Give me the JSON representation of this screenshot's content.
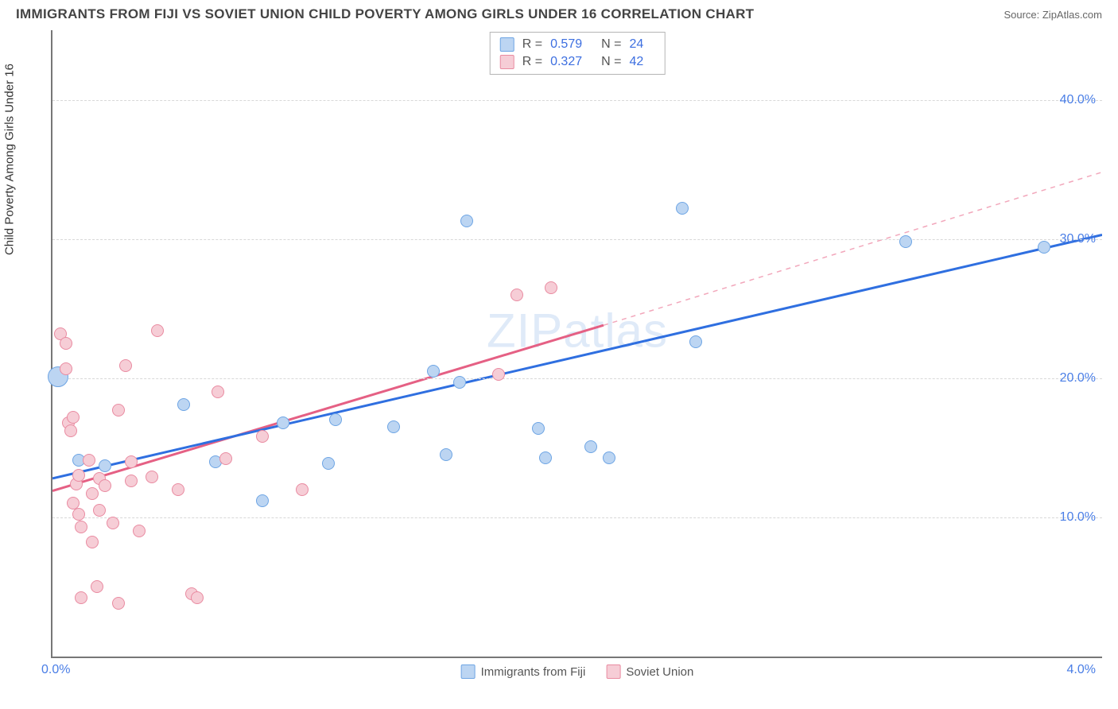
{
  "header": {
    "title": "IMMIGRANTS FROM FIJI VS SOVIET UNION CHILD POVERTY AMONG GIRLS UNDER 16 CORRELATION CHART",
    "source_prefix": "Source: ",
    "source_name": "ZipAtlas.com"
  },
  "y_axis_label": "Child Poverty Among Girls Under 16",
  "watermark": "ZIPatlas",
  "chart": {
    "type": "scatter",
    "xlim": [
      0.0,
      4.0
    ],
    "ylim": [
      0.0,
      45.0
    ],
    "y_gridlines": [
      10.0,
      20.0,
      30.0,
      40.0
    ],
    "y_tick_labels": [
      "10.0%",
      "20.0%",
      "30.0%",
      "40.0%"
    ],
    "x_tick_labels": {
      "left": "0.0%",
      "right": "4.0%"
    },
    "grid_color": "#d8d8d8",
    "axis_color": "#777777",
    "background_color": "#ffffff",
    "series": [
      {
        "name": "Immigrants from Fiji",
        "key": "fiji",
        "marker_fill": "#bcd5f2",
        "marker_stroke": "#6ea5e4",
        "marker_radius": 8,
        "line_color": "#2f6fe0",
        "line_width": 3,
        "line_dash": "none",
        "trend": {
          "x1": 0.0,
          "y1": 12.8,
          "x2": 4.0,
          "y2": 30.3
        },
        "R": "0.579",
        "N": "24",
        "points": [
          {
            "x": 0.02,
            "y": 20.1,
            "r": 13
          },
          {
            "x": 0.1,
            "y": 14.1
          },
          {
            "x": 0.2,
            "y": 13.7
          },
          {
            "x": 0.5,
            "y": 18.1
          },
          {
            "x": 0.62,
            "y": 14.0
          },
          {
            "x": 0.8,
            "y": 11.2
          },
          {
            "x": 0.88,
            "y": 16.8
          },
          {
            "x": 1.05,
            "y": 13.9
          },
          {
            "x": 1.08,
            "y": 17.0
          },
          {
            "x": 1.3,
            "y": 16.5
          },
          {
            "x": 1.45,
            "y": 20.5
          },
          {
            "x": 1.5,
            "y": 14.5
          },
          {
            "x": 1.55,
            "y": 19.7
          },
          {
            "x": 1.58,
            "y": 31.3
          },
          {
            "x": 1.85,
            "y": 16.4
          },
          {
            "x": 1.88,
            "y": 14.3
          },
          {
            "x": 2.05,
            "y": 15.1
          },
          {
            "x": 2.12,
            "y": 14.3
          },
          {
            "x": 2.4,
            "y": 32.2
          },
          {
            "x": 2.45,
            "y": 22.6
          },
          {
            "x": 3.25,
            "y": 29.8
          },
          {
            "x": 3.78,
            "y": 29.4
          }
        ]
      },
      {
        "name": "Soviet Union",
        "key": "soviet",
        "marker_fill": "#f6cdd6",
        "marker_stroke": "#e98ba1",
        "marker_radius": 8,
        "line_color": "#e56084",
        "line_width": 3,
        "line_dash": "none",
        "dashed_ext_color": "#f2a7bb",
        "trend": {
          "x1": 0.0,
          "y1": 11.9,
          "x2": 2.1,
          "y2": 23.8
        },
        "trend_ext": {
          "x1": 2.1,
          "y1": 23.8,
          "x2": 4.0,
          "y2": 34.8
        },
        "R": "0.327",
        "N": "42",
        "points": [
          {
            "x": 0.03,
            "y": 23.2
          },
          {
            "x": 0.05,
            "y": 22.5
          },
          {
            "x": 0.05,
            "y": 20.7
          },
          {
            "x": 0.06,
            "y": 16.8
          },
          {
            "x": 0.07,
            "y": 16.2
          },
          {
            "x": 0.08,
            "y": 17.2
          },
          {
            "x": 0.08,
            "y": 11.0
          },
          {
            "x": 0.09,
            "y": 12.4
          },
          {
            "x": 0.1,
            "y": 13.0
          },
          {
            "x": 0.1,
            "y": 10.2
          },
          {
            "x": 0.11,
            "y": 9.3
          },
          {
            "x": 0.11,
            "y": 4.2
          },
          {
            "x": 0.14,
            "y": 14.1
          },
          {
            "x": 0.15,
            "y": 11.7
          },
          {
            "x": 0.15,
            "y": 8.2
          },
          {
            "x": 0.17,
            "y": 5.0
          },
          {
            "x": 0.18,
            "y": 12.8
          },
          {
            "x": 0.18,
            "y": 10.5
          },
          {
            "x": 0.2,
            "y": 12.3
          },
          {
            "x": 0.23,
            "y": 9.6
          },
          {
            "x": 0.25,
            "y": 17.7
          },
          {
            "x": 0.25,
            "y": 3.8
          },
          {
            "x": 0.28,
            "y": 20.9
          },
          {
            "x": 0.3,
            "y": 14.0
          },
          {
            "x": 0.3,
            "y": 12.6
          },
          {
            "x": 0.33,
            "y": 9.0
          },
          {
            "x": 0.38,
            "y": 12.9
          },
          {
            "x": 0.4,
            "y": 23.4
          },
          {
            "x": 0.48,
            "y": 12.0
          },
          {
            "x": 0.53,
            "y": 4.5
          },
          {
            "x": 0.55,
            "y": 4.2
          },
          {
            "x": 0.63,
            "y": 19.0
          },
          {
            "x": 0.66,
            "y": 14.2
          },
          {
            "x": 0.8,
            "y": 15.8
          },
          {
            "x": 0.95,
            "y": 12.0
          },
          {
            "x": 1.7,
            "y": 20.3
          },
          {
            "x": 1.77,
            "y": 26.0
          },
          {
            "x": 1.9,
            "y": 26.5
          }
        ]
      }
    ]
  },
  "legend_bottom": [
    {
      "label": "Immigrants from Fiji",
      "fill": "#bcd5f2",
      "stroke": "#6ea5e4"
    },
    {
      "label": "Soviet Union",
      "fill": "#f6cdd6",
      "stroke": "#e98ba1"
    }
  ]
}
